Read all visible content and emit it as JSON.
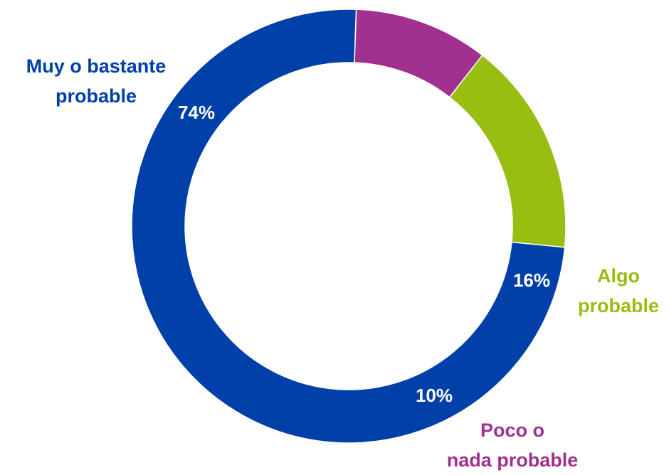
{
  "chart_data": {
    "type": "pie",
    "donut": true,
    "slices": [
      {
        "label_lines": [
          "Muy o bastante",
          "probable"
        ],
        "value": 74,
        "value_label": "74%",
        "color": "#0040A8"
      },
      {
        "label_lines": [
          "Algo",
          "probable"
        ],
        "value": 16,
        "value_label": "16%",
        "color": "#98BE12"
      },
      {
        "label_lines": [
          "Poco o",
          "nada probable"
        ],
        "value": 10,
        "value_label": "10%",
        "color": "#A0318E"
      }
    ]
  }
}
